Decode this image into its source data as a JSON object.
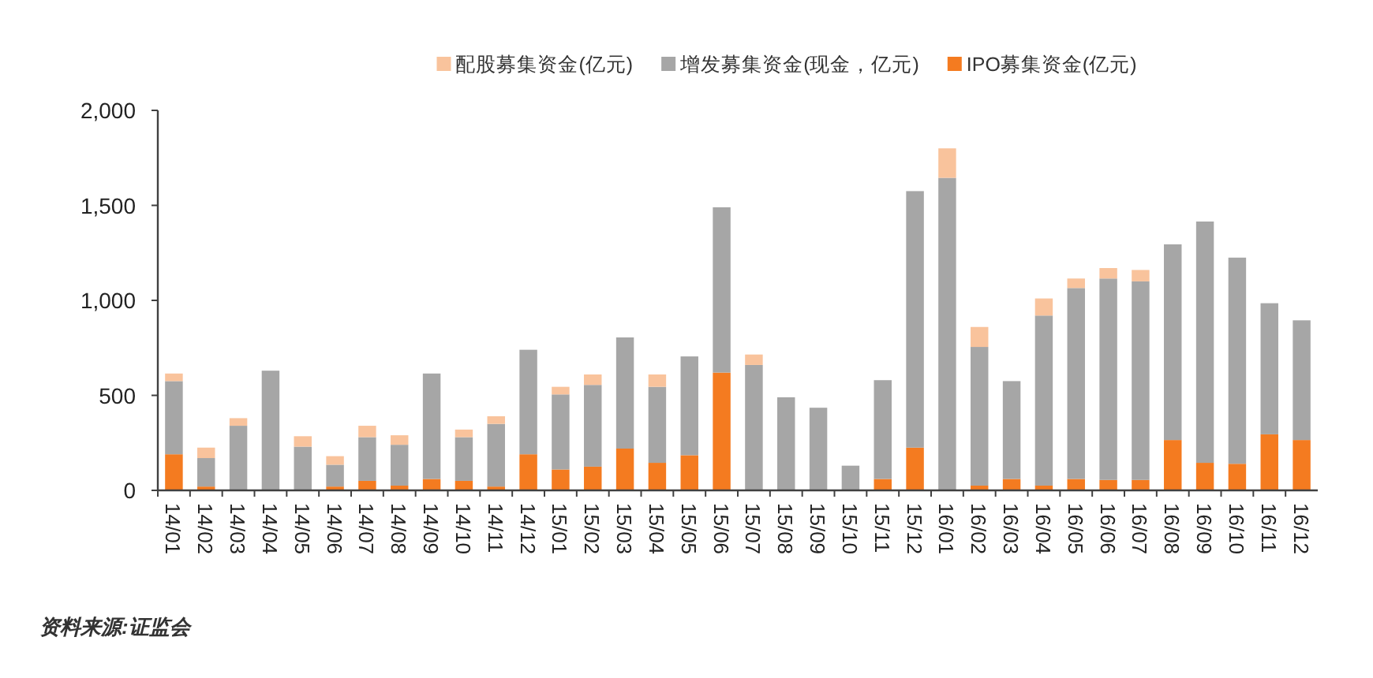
{
  "chart_data": {
    "type": "bar",
    "stacked": true,
    "legend": "top",
    "grid": false,
    "categories": [
      "14/01",
      "14/02",
      "14/03",
      "14/04",
      "14/05",
      "14/06",
      "14/07",
      "14/08",
      "14/09",
      "14/10",
      "14/11",
      "14/12",
      "15/01",
      "15/02",
      "15/03",
      "15/04",
      "15/05",
      "15/06",
      "15/07",
      "15/08",
      "15/09",
      "15/10",
      "15/11",
      "15/12",
      "16/01",
      "16/02",
      "16/03",
      "16/04",
      "16/05",
      "16/06",
      "16/07",
      "16/08",
      "16/09",
      "16/10",
      "16/11",
      "16/12"
    ],
    "ylim": [
      0,
      2000
    ],
    "yticks": [
      {
        "value": 0,
        "label": "0"
      },
      {
        "value": 500,
        "label": "500"
      },
      {
        "value": 1000,
        "label": "1,000"
      },
      {
        "value": 1500,
        "label": "1,500"
      },
      {
        "value": 2000,
        "label": "2,000"
      }
    ],
    "series": [
      {
        "name": "IPO募集资金(亿元)",
        "color": "#f47b20",
        "values": [
          190,
          20,
          0,
          0,
          0,
          20,
          50,
          25,
          60,
          50,
          20,
          190,
          110,
          125,
          220,
          145,
          185,
          620,
          0,
          0,
          0,
          0,
          60,
          225,
          0,
          25,
          60,
          25,
          60,
          55,
          55,
          265,
          145,
          140,
          295,
          265
        ]
      },
      {
        "name": "增发募集资金(现金，亿元)",
        "color": "#a6a6a6",
        "values": [
          385,
          150,
          340,
          630,
          230,
          115,
          230,
          215,
          555,
          230,
          330,
          550,
          395,
          430,
          585,
          400,
          520,
          870,
          660,
          490,
          435,
          130,
          520,
          1350,
          1645,
          730,
          515,
          895,
          1005,
          1060,
          1045,
          1030,
          1270,
          1085,
          690,
          630
        ]
      },
      {
        "name": "配股募集资金(亿元)",
        "color": "#f9c39c",
        "values": [
          40,
          55,
          40,
          0,
          55,
          45,
          60,
          50,
          0,
          40,
          40,
          0,
          40,
          55,
          0,
          65,
          0,
          0,
          55,
          0,
          0,
          0,
          0,
          0,
          155,
          105,
          0,
          90,
          50,
          55,
          60,
          0,
          0,
          0,
          0,
          0
        ]
      }
    ],
    "annotations": [
      "资料来源:证监会"
    ]
  }
}
